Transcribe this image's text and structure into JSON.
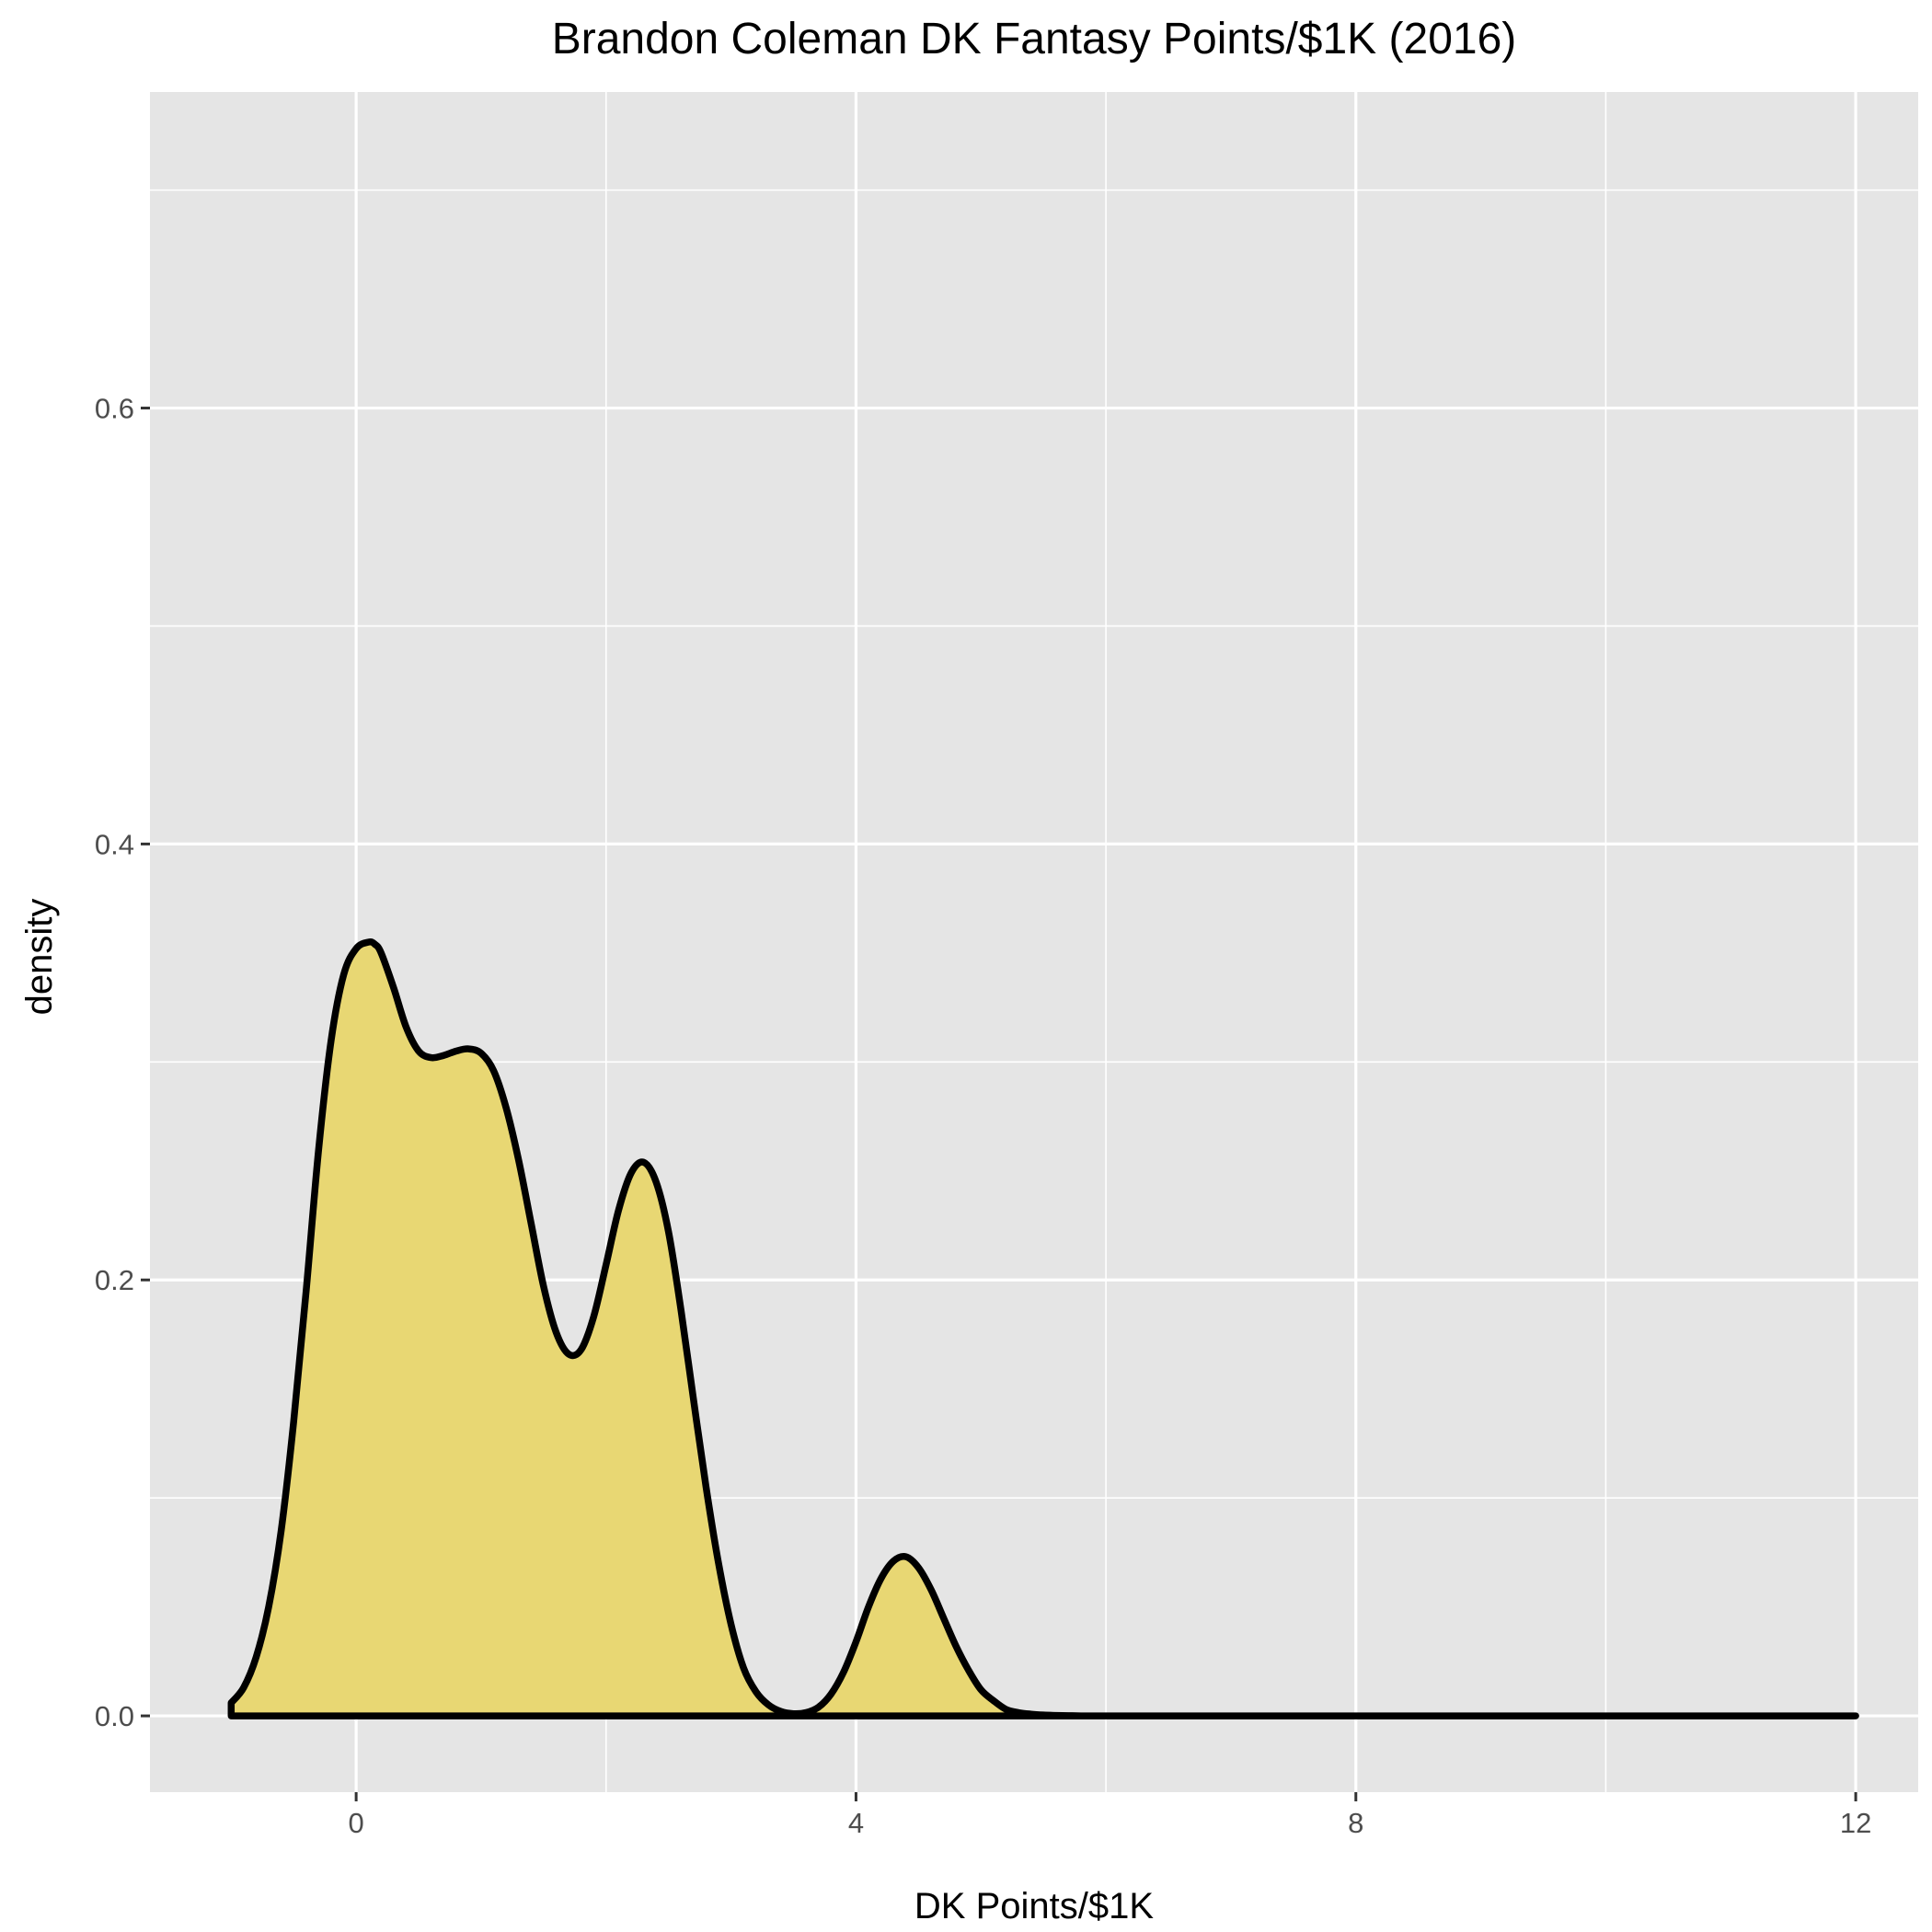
{
  "chart_data": {
    "type": "area",
    "title": "Brandon Coleman DK Fantasy Points/$1K (2016)",
    "xlabel": "DK Points/$1K",
    "ylabel": "density",
    "xlim": [
      -1.65,
      12.5
    ],
    "ylim": [
      -0.035,
      0.745
    ],
    "x_ticks": [
      0,
      4,
      8,
      12
    ],
    "x_tick_labels": [
      "0",
      "4",
      "8",
      "12"
    ],
    "x_minor_ticks": [
      2,
      6,
      10
    ],
    "y_ticks": [
      0.0,
      0.2,
      0.4,
      0.6
    ],
    "y_tick_labels": [
      "0.0",
      "0.2",
      "0.4",
      "0.6"
    ],
    "y_minor_ticks": [
      0.1,
      0.3,
      0.5,
      0.7
    ],
    "grid": true,
    "legend": "none",
    "colors": {
      "panel_background": "#e5e5e5",
      "grid": "#ffffff",
      "fill": "#e8d773",
      "line": "#000000"
    },
    "series": [
      {
        "x": [
          -1.0,
          -0.9,
          -0.8,
          -0.7,
          -0.6,
          -0.5,
          -0.4,
          -0.3,
          -0.2,
          -0.1,
          0.0,
          0.1,
          0.15,
          0.2,
          0.3,
          0.4,
          0.5,
          0.6,
          0.7,
          0.8,
          0.9,
          1.0,
          1.1,
          1.2,
          1.3,
          1.4,
          1.5,
          1.6,
          1.7,
          1.8,
          1.9,
          2.0,
          2.1,
          2.2,
          2.3,
          2.4,
          2.5,
          2.6,
          2.7,
          2.8,
          2.9,
          3.0,
          3.1,
          3.2,
          3.3,
          3.4,
          3.5,
          3.6,
          3.7,
          3.8,
          3.9,
          4.0,
          4.1,
          4.2,
          4.3,
          4.4,
          4.5,
          4.6,
          4.7,
          4.8,
          4.9,
          5.0,
          5.1,
          5.2,
          5.3,
          5.4,
          5.5,
          5.6,
          5.7,
          5.8,
          5.9,
          6.0,
          6.2,
          6.5,
          7.0,
          8.0,
          9.0,
          10.0,
          11.0,
          12.0
        ],
        "values": [
          0.006,
          0.013,
          0.027,
          0.05,
          0.085,
          0.135,
          0.195,
          0.26,
          0.31,
          0.34,
          0.352,
          0.355,
          0.354,
          0.35,
          0.334,
          0.316,
          0.305,
          0.302,
          0.303,
          0.305,
          0.306,
          0.304,
          0.296,
          0.279,
          0.255,
          0.226,
          0.197,
          0.176,
          0.166,
          0.168,
          0.183,
          0.207,
          0.232,
          0.249,
          0.254,
          0.245,
          0.222,
          0.186,
          0.145,
          0.105,
          0.07,
          0.042,
          0.022,
          0.011,
          0.005,
          0.002,
          0.001,
          0.0015,
          0.004,
          0.01,
          0.02,
          0.034,
          0.05,
          0.063,
          0.071,
          0.073,
          0.068,
          0.058,
          0.045,
          0.032,
          0.021,
          0.012,
          0.007,
          0.003,
          0.0015,
          0.0008,
          0.0004,
          0.0002,
          0.0001,
          0.0,
          0.0,
          0.0,
          0.0,
          0.0,
          0.0,
          0.0,
          0.0,
          0.0,
          0.0,
          0.0
        ]
      }
    ]
  }
}
